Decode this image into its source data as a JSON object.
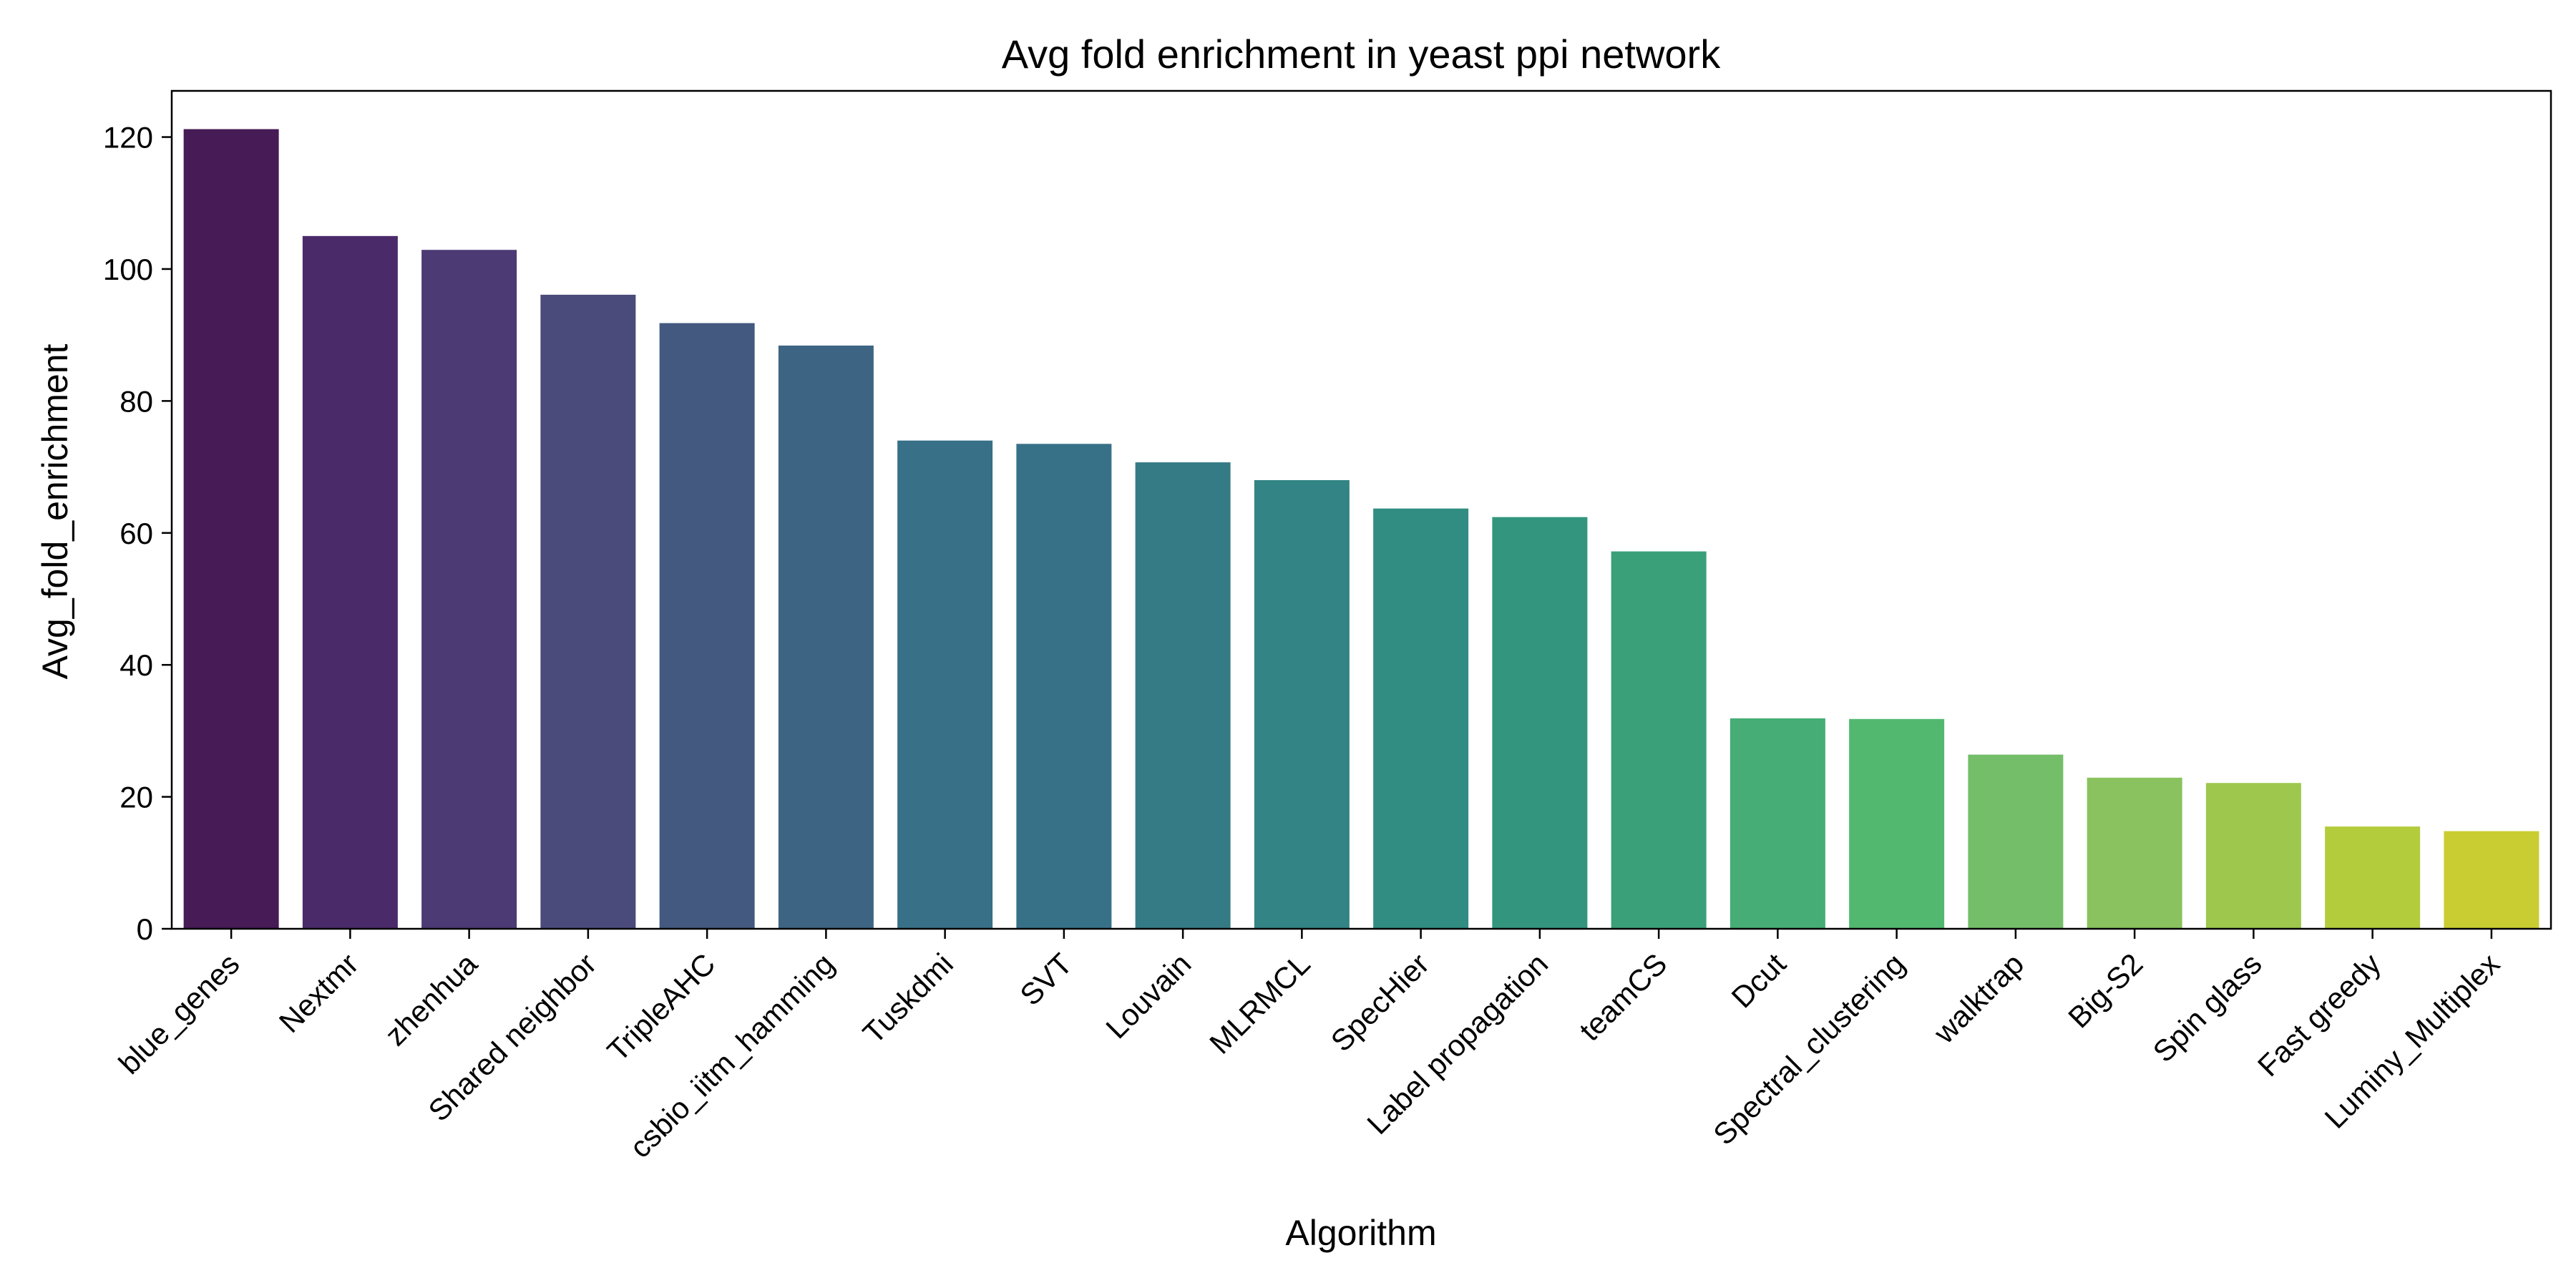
{
  "chart_data": {
    "type": "bar",
    "title": "Avg fold enrichment in yeast ppi network",
    "xlabel": "Algorithm",
    "ylabel": "Avg_fold_enrichment",
    "ylim": [
      0,
      127
    ],
    "yticks": [
      0,
      20,
      40,
      60,
      80,
      100,
      120
    ],
    "grid": false,
    "legend": "none",
    "palette": "viridis",
    "categories": [
      "blue_genes",
      "Nextmr",
      "zhenhua",
      "Shared neighbor",
      "TripleAHC",
      "csbio_iitm_hamming",
      "Tuskdmi",
      "SVT",
      "Louvain",
      "MLRMCL",
      "SpecHier",
      "Label propagation",
      "teamCS",
      "Dcut",
      "Spectral_clustering",
      "walktrap",
      "Big-S2",
      "Spin glass",
      "Fast greedy",
      "Luminy_Multiplex"
    ],
    "values": [
      121.2,
      105.0,
      102.9,
      96.1,
      91.8,
      88.4,
      74.0,
      73.5,
      70.7,
      68.0,
      63.7,
      62.4,
      57.2,
      31.9,
      31.8,
      26.4,
      22.9,
      22.1,
      15.5,
      14.8
    ],
    "colors": [
      "#461b56",
      "#4b2a6a",
      "#4c3a74",
      "#4a4a7b",
      "#43597f",
      "#3e6483",
      "#387087",
      "#377187",
      "#357b86",
      "#338484",
      "#318d82",
      "#33957e",
      "#3aa07a",
      "#45ad75",
      "#52b870",
      "#74be6a",
      "#89c25e",
      "#9ec84d",
      "#b3cc3c",
      "#c9cd31"
    ]
  }
}
